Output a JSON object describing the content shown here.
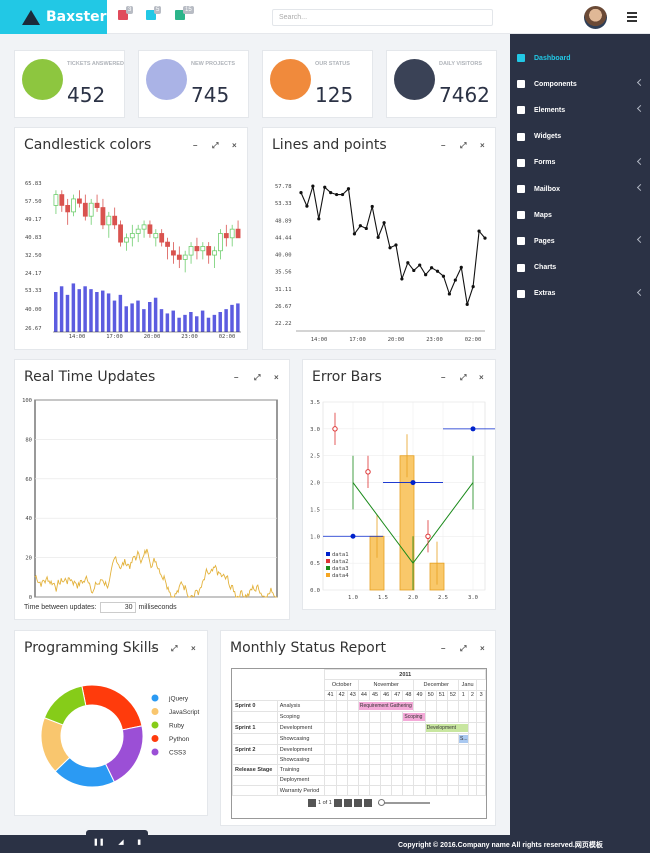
{
  "app": {
    "name": "Baxster"
  },
  "topbar": {
    "badges": [
      {
        "icon": "mail-icon",
        "count": "3",
        "color": "#e04b5b"
      },
      {
        "icon": "bell-icon",
        "count": "5",
        "color": "#22c8e5"
      },
      {
        "icon": "tasks-icon",
        "count": "15",
        "color": "#2cb48a"
      }
    ],
    "search_placeholder": "Search..."
  },
  "stats": [
    {
      "label": "TICKETS ANSWERED",
      "value": "452",
      "color": "#8dc63f",
      "icon": "book-icon"
    },
    {
      "label": "NEW PROJECTS",
      "value": "745",
      "color": "#aab3e6",
      "icon": "rocket-icon"
    },
    {
      "label": "OUR STATUS",
      "value": "125",
      "color": "#f08a3c",
      "icon": "bar-chart-icon"
    },
    {
      "label": "DAILY VISITORS",
      "value": "7462",
      "color": "#3a4256",
      "icon": "user-icon"
    }
  ],
  "panels": {
    "candlestick": "Candlestick colors",
    "lines": "Lines and points",
    "realtime": "Real Time Updates",
    "errorbars": "Error Bars",
    "skills": "Programming Skills",
    "monthly": "Monthly Status Report"
  },
  "panel_controls": {
    "minimize": "–",
    "expand": "⤢",
    "close": "×"
  },
  "sidebar": {
    "items": [
      {
        "label": "Dashboard",
        "icon": "home-icon",
        "chevron": false,
        "active": true
      },
      {
        "label": "Components",
        "icon": "cogs-icon",
        "chevron": true
      },
      {
        "label": "Elements",
        "icon": "envelope-icon",
        "chevron": true
      },
      {
        "label": "Widgets",
        "icon": "grid-icon",
        "chevron": false
      },
      {
        "label": "Forms",
        "icon": "check-square-icon",
        "chevron": true
      },
      {
        "label": "Mailbox",
        "icon": "mail-icon",
        "chevron": true
      },
      {
        "label": "Maps",
        "icon": "location-arrow-icon",
        "chevron": false
      },
      {
        "label": "Pages",
        "icon": "file-icon",
        "chevron": true
      },
      {
        "label": "Charts",
        "icon": "bar-chart-icon",
        "chevron": false
      },
      {
        "label": "Extras",
        "icon": "list-icon",
        "chevron": true
      }
    ]
  },
  "realtime": {
    "interval_label": "Time between updates:",
    "interval_value": "30",
    "interval_unit": "milliseconds"
  },
  "footer": {
    "copyright": "Copyright © 2016.Company name All rights reserved.网页模板"
  },
  "player": [
    "pause-icon",
    "signal-icon",
    "file-icon"
  ],
  "gantt": {
    "year": "2011",
    "months": [
      {
        "name": "October",
        "span": 3
      },
      {
        "name": "November",
        "span": 5
      },
      {
        "name": "December",
        "span": 4
      },
      {
        "name": "Janu",
        "span": 2
      }
    ],
    "weeks": [
      "41",
      "42",
      "43",
      "44",
      "45",
      "46",
      "47",
      "48",
      "49",
      "50",
      "51",
      "52",
      "1",
      "2",
      "3"
    ],
    "rows": [
      {
        "group": "Sprint 0",
        "task": "Analysis",
        "bar": {
          "label": "Requirement Gathering",
          "start": 3,
          "len": 5,
          "color": "#f4a9d8"
        }
      },
      {
        "group": "",
        "task": "Scoping",
        "bar": {
          "label": "Scoping",
          "start": 7,
          "len": 2,
          "color": "#f4a9d8"
        }
      },
      {
        "group": "Sprint 1",
        "task": "Development",
        "bar": {
          "label": "Development",
          "start": 9,
          "len": 4,
          "color": "#c8e6a0"
        }
      },
      {
        "group": "",
        "task": "Showcasing",
        "bar": {
          "label": "S...",
          "start": 12,
          "len": 1,
          "color": "#a9c8f0"
        }
      },
      {
        "group": "Sprint 2",
        "task": "Development",
        "bar": null
      },
      {
        "group": "",
        "task": "Showcasing",
        "bar": null
      },
      {
        "group": "Release Stage",
        "task": "Training",
        "bar": null
      },
      {
        "group": "",
        "task": "Deployment",
        "bar": null
      },
      {
        "group": "",
        "task": "Warranty Period",
        "bar": null
      }
    ],
    "pager": "1 of 1"
  },
  "chart_data": [
    {
      "type": "candlestick",
      "title": "Candlestick colors",
      "ylim": [
        24.17,
        65.83
      ],
      "yticks": [
        "65.83",
        "57.50",
        "49.17",
        "40.83",
        "32.50",
        "24.17"
      ],
      "xticks": [
        "14:00",
        "17:00",
        "20:00",
        "23:00",
        "02:00"
      ],
      "volume_yticks": [
        "53.33",
        "40.00",
        "26.67"
      ],
      "candles": [
        [
          55,
          62,
          51,
          60
        ],
        [
          60,
          62,
          52,
          55
        ],
        [
          55,
          58,
          46,
          52
        ],
        [
          52,
          60,
          50,
          58
        ],
        [
          58,
          62,
          54,
          56
        ],
        [
          56,
          60,
          48,
          50
        ],
        [
          50,
          58,
          46,
          56
        ],
        [
          56,
          60,
          52,
          54
        ],
        [
          54,
          58,
          44,
          46
        ],
        [
          46,
          52,
          40,
          50
        ],
        [
          50,
          54,
          44,
          46
        ],
        [
          46,
          48,
          36,
          38
        ],
        [
          38,
          42,
          34,
          40
        ],
        [
          40,
          46,
          36,
          42
        ],
        [
          42,
          46,
          38,
          44
        ],
        [
          44,
          48,
          40,
          46
        ],
        [
          46,
          48,
          40,
          42
        ],
        [
          40,
          44,
          36,
          42
        ],
        [
          42,
          44,
          36,
          38
        ],
        [
          38,
          40,
          30,
          36
        ],
        [
          34,
          38,
          28,
          32
        ],
        [
          32,
          36,
          26,
          30
        ],
        [
          30,
          34,
          24,
          32
        ],
        [
          32,
          38,
          28,
          36
        ],
        [
          36,
          40,
          30,
          34
        ],
        [
          34,
          38,
          30,
          36
        ],
        [
          36,
          38,
          28,
          32
        ],
        [
          32,
          36,
          26,
          34
        ],
        [
          34,
          44,
          30,
          42
        ],
        [
          42,
          46,
          36,
          40
        ],
        [
          40,
          46,
          36,
          44
        ],
        [
          44,
          48,
          40,
          40
        ]
      ],
      "volume": [
        48,
        52,
        46,
        54,
        50,
        52,
        50,
        48,
        49,
        47,
        42,
        46,
        38,
        40,
        42,
        36,
        41,
        44,
        36,
        33,
        35,
        30,
        32,
        34,
        31,
        35,
        30,
        32,
        34,
        36,
        39,
        40
      ]
    },
    {
      "type": "line",
      "title": "Lines and points",
      "ylim": [
        22.22,
        57.78
      ],
      "yticks": [
        "57.78",
        "53.33",
        "48.89",
        "44.44",
        "40.00",
        "35.56",
        "31.11",
        "26.67",
        "22.22"
      ],
      "xticks": [
        "14:00",
        "17:00",
        "20:00",
        "23:00",
        "02:00"
      ],
      "y": [
        55.8,
        52.3,
        57.5,
        49.0,
        57.2,
        55.8,
        55.3,
        55.3,
        56.8,
        45.1,
        47.2,
        46.5,
        52.2,
        44.2,
        48.0,
        41.5,
        42.2,
        33.4,
        37.6,
        35.6,
        37.0,
        34.5,
        36.3,
        35.4,
        34.1,
        29.5,
        33.1,
        36.4,
        26.8,
        31.4,
        45.8,
        44.0
      ]
    },
    {
      "type": "line",
      "title": "Real Time Updates",
      "ylim": [
        0,
        100
      ],
      "yticks": [
        "100",
        "80",
        "60",
        "40",
        "20",
        "0"
      ]
    },
    {
      "type": "errorbar",
      "title": "Error Bars",
      "xlim": [
        0.5,
        3.2
      ],
      "ylim": [
        0,
        3.5
      ],
      "xticks": [
        "1.0",
        "1.5",
        "2.0",
        "2.5",
        "3.0"
      ],
      "yticks": [
        "3.5",
        "3.0",
        "2.5",
        "2.0",
        "1.5",
        "1.0",
        "0.5",
        "0.0"
      ],
      "series": [
        {
          "name": "data1",
          "color": "#0022cc",
          "points": [
            [
              1.0,
              1.0
            ],
            [
              2.0,
              2.0
            ],
            [
              3.0,
              3.0
            ]
          ]
        },
        {
          "name": "data2",
          "color": "#d33",
          "points": [
            [
              0.7,
              3.0
            ],
            [
              1.25,
              2.2
            ],
            [
              2.25,
              1.0
            ]
          ]
        },
        {
          "name": "data3",
          "color": "#1a8a1a",
          "points": [
            [
              1.0,
              2.0
            ],
            [
              2.0,
              0.5
            ],
            [
              3.0,
              2.0
            ]
          ]
        },
        {
          "name": "data4",
          "color": "#f5a623",
          "bars": [
            [
              1.4,
              1.0
            ],
            [
              1.9,
              2.5
            ],
            [
              2.4,
              0.5
            ]
          ]
        }
      ]
    },
    {
      "type": "pie",
      "title": "Programming Skills",
      "slices": [
        {
          "name": "jQuery",
          "value": 20,
          "color": "#2b9af3"
        },
        {
          "name": "JavaScript",
          "value": 18,
          "color": "#f9c66e"
        },
        {
          "name": "Ruby",
          "value": 16,
          "color": "#86cc19"
        },
        {
          "name": "Python",
          "value": 25,
          "color": "#ff3b0c"
        },
        {
          "name": "CSS3",
          "value": 21,
          "color": "#9b4fd6"
        }
      ]
    }
  ]
}
